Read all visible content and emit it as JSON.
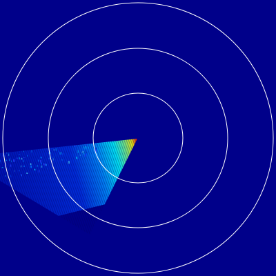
{
  "display": {
    "background_color": "#00008a",
    "ring_color": "#ffffff",
    "ring_count": 3,
    "sweep_direction": "lower-left",
    "sweep_colormap": [
      "#00008a",
      "#0000ff",
      "#00a0ff",
      "#00ffff",
      "#80ff80",
      "#ffff00",
      "#ff8000",
      "#ff0000"
    ]
  }
}
